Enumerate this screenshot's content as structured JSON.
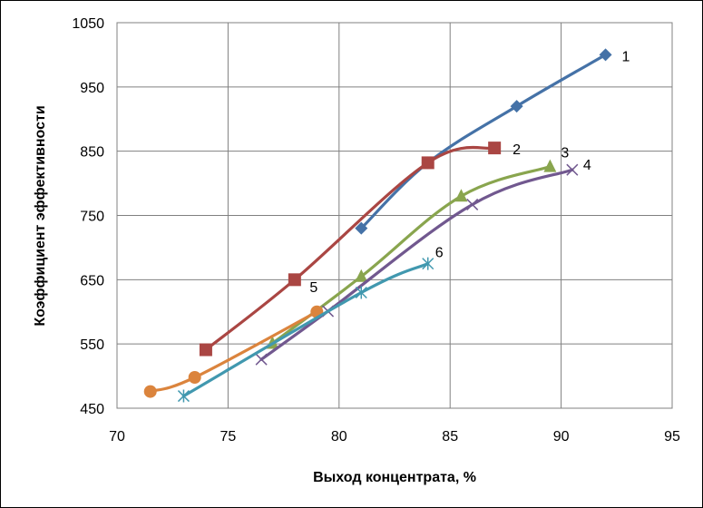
{
  "chart_data": {
    "type": "line",
    "title": "",
    "xlabel": "Выход концентрата, %",
    "ylabel": "Коэффициент эффективности",
    "xlim": [
      70,
      95
    ],
    "ylim": [
      450,
      1050
    ],
    "x_ticks": [
      "70",
      "75",
      "80",
      "85",
      "90",
      "95"
    ],
    "y_ticks": [
      "450",
      "550",
      "650",
      "750",
      "850",
      "950",
      "1050"
    ],
    "grid": true,
    "legend": "none",
    "series": [
      {
        "name": "1",
        "color": "#4572A7",
        "marker": "diamond",
        "x": [
          81,
          84,
          88,
          92
        ],
        "y": [
          730,
          832,
          920,
          1000
        ]
      },
      {
        "name": "2",
        "color": "#AA4643",
        "marker": "square",
        "x": [
          74,
          78,
          84,
          87
        ],
        "y": [
          541,
          650,
          832,
          855
        ]
      },
      {
        "name": "3",
        "color": "#89A54E",
        "marker": "triangle",
        "x": [
          77,
          81,
          85.5,
          89.5
        ],
        "y": [
          551,
          655,
          780,
          826
        ]
      },
      {
        "name": "4",
        "color": "#71588F",
        "marker": "x",
        "x": [
          76.5,
          79.5,
          86,
          90.5
        ],
        "y": [
          526,
          601,
          767,
          821
        ]
      },
      {
        "name": "5",
        "color": "#DB843D",
        "marker": "circle",
        "x": [
          71.5,
          73.5,
          79
        ],
        "y": [
          476,
          498,
          600
        ]
      },
      {
        "name": "6",
        "color": "#4198AF",
        "marker": "star",
        "x": [
          73,
          81,
          84
        ],
        "y": [
          469,
          630,
          675
        ]
      }
    ]
  }
}
